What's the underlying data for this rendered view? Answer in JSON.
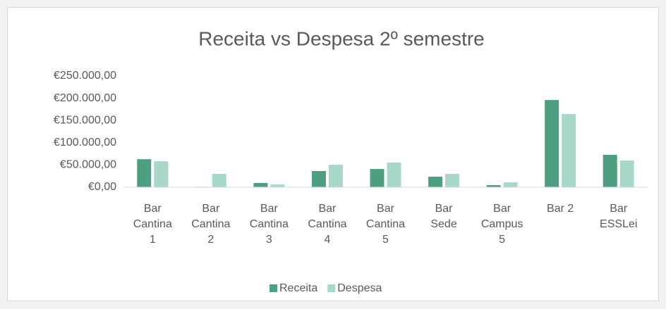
{
  "chart_data": {
    "type": "bar",
    "title": "Receita vs Despesa 2º semestre",
    "categories": [
      "Bar Cantina 1",
      "Bar Cantina 2",
      "Bar Cantina 3",
      "Bar Cantina 4",
      "Bar Cantina 5",
      "Bar Sede",
      "Bar Campus 5",
      "Bar 2",
      "Bar ESSLei"
    ],
    "series": [
      {
        "name": "Receita",
        "color": "#4e9f80",
        "values": [
          63000,
          1000,
          9500,
          36400,
          41000,
          23700,
          4700,
          196000,
          72800
        ]
      },
      {
        "name": "Despesa",
        "color": "#a8d8c8",
        "values": [
          58500,
          30000,
          6300,
          50600,
          55400,
          30000,
          11000,
          164600,
          60000
        ]
      }
    ],
    "ylim": [
      0,
      250000
    ],
    "yticks": [
      {
        "value": 0,
        "label": "€0,00"
      },
      {
        "value": 50000,
        "label": "€50.000,00"
      },
      {
        "value": 100000,
        "label": "€100.000,00"
      },
      {
        "value": 150000,
        "label": "€150.000,00"
      },
      {
        "value": 200000,
        "label": "€200.000,00"
      },
      {
        "value": 250000,
        "label": "€250.000,00"
      }
    ],
    "grid": false,
    "legend": "bottom"
  }
}
